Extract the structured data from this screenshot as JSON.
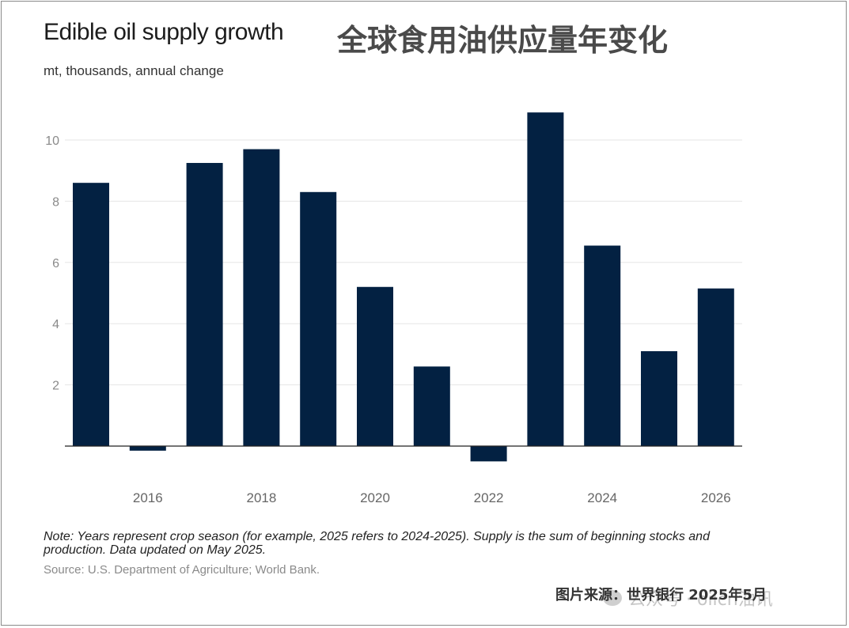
{
  "header": {
    "title": "Edible oil supply growth",
    "title_cn": "全球食用油供应量年变化",
    "subtitle": "mt, thousands, annual change"
  },
  "footer": {
    "note": "Note: Years represent crop season (for example, 2025 refers to 2024-2025). Supply is the sum of beginning stocks and production. Data updated on May 2025.",
    "source": "Source: U.S. Department of Agriculture; World Bank.",
    "credit": "图片来源：世界银行  2025年5月",
    "watermark": "公众号 · oilcn油讯"
  },
  "colors": {
    "bar": "#032142",
    "grid": "#e5e5e5",
    "axis": "#222222",
    "tick": "#8a8a8a"
  },
  "chart_data": {
    "type": "bar",
    "x": [
      2015,
      2016,
      2017,
      2018,
      2019,
      2020,
      2021,
      2022,
      2023,
      2024,
      2025,
      2026
    ],
    "values": [
      8.6,
      -0.15,
      9.25,
      9.7,
      8.3,
      5.2,
      2.6,
      -0.5,
      10.9,
      6.55,
      3.1,
      5.15
    ],
    "x_tick_labels": [
      "2016",
      "2018",
      "2020",
      "2022",
      "2024",
      "2026"
    ],
    "x_tick_values": [
      2016,
      2018,
      2020,
      2022,
      2024,
      2026
    ],
    "y_ticks": [
      2,
      4,
      6,
      8,
      10
    ],
    "ylim": [
      -0.6,
      11
    ],
    "title": "Edible oil supply growth",
    "ylabel": "mt, thousands, annual change",
    "xlabel": "",
    "grid": true,
    "legend": "none"
  }
}
